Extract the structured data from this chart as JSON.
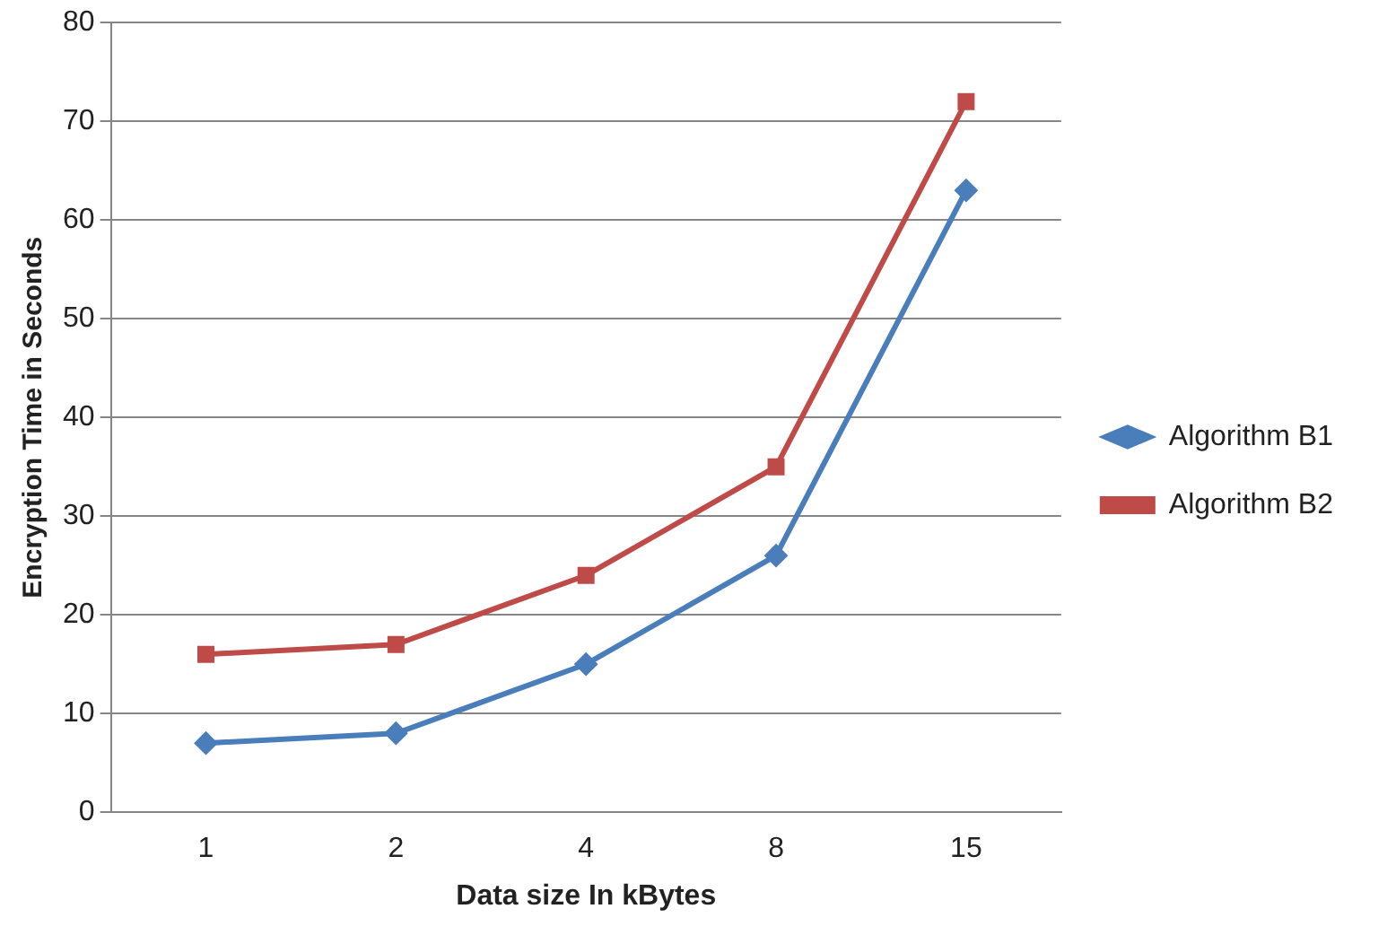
{
  "chart_data": {
    "type": "line",
    "xlabel": "Data size In kBytes",
    "ylabel": "Encryption Time in Seconds",
    "categories": [
      "1",
      "2",
      "4",
      "8",
      "15"
    ],
    "series": [
      {
        "name": "Algorithm B1",
        "color": "#4a7ebb",
        "marker": "diamond",
        "values": [
          7,
          8,
          15,
          26,
          63
        ]
      },
      {
        "name": "Algorithm B2",
        "color": "#be4b48",
        "marker": "square",
        "values": [
          16,
          17,
          24,
          35,
          72
        ]
      }
    ],
    "ylim": [
      0,
      80
    ],
    "yticks": [
      0,
      10,
      20,
      30,
      40,
      50,
      60,
      70,
      80
    ],
    "grid": "y",
    "legend": "right",
    "line_style": "solid"
  }
}
